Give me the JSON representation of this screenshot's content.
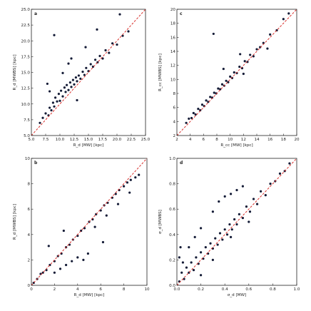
{
  "chart_data": [
    {
      "type": "scatter",
      "panel_letter": "a",
      "xlabel": "R_d [MW] [kpc]",
      "ylabel": "R_d [MWBS] [kpc]",
      "xlim": [
        5.0,
        25.0
      ],
      "ylim": [
        5.0,
        25.0
      ],
      "xticks": [
        "5.0",
        "7.5",
        "10.0",
        "12.5",
        "15.0",
        "17.5",
        "20.0",
        "22.5",
        "25.0"
      ],
      "yticks": [
        "5.0",
        "7.5",
        "10.0",
        "12.5",
        "15.0",
        "17.5",
        "20.0",
        "22.5",
        "25.0"
      ],
      "reference_line": "y = x",
      "series": [
        {
          "points": [
            [
              6.5,
              7.0
            ],
            [
              7.0,
              7.8
            ],
            [
              7.5,
              8.5
            ],
            [
              8.0,
              8.2
            ],
            [
              8.2,
              9.4
            ],
            [
              8.5,
              9.0
            ],
            [
              8.8,
              10.2
            ],
            [
              9.0,
              9.6
            ],
            [
              9.2,
              11.0
            ],
            [
              9.5,
              10.4
            ],
            [
              9.8,
              11.6
            ],
            [
              10.0,
              10.5
            ],
            [
              10.2,
              12.1
            ],
            [
              10.5,
              11.2
            ],
            [
              10.8,
              12.6
            ],
            [
              11.0,
              11.9
            ],
            [
              11.2,
              13.0
            ],
            [
              11.5,
              12.2
            ],
            [
              11.8,
              13.4
            ],
            [
              12.0,
              12.7
            ],
            [
              12.3,
              13.8
            ],
            [
              12.5,
              13.1
            ],
            [
              12.8,
              14.2
            ],
            [
              13.0,
              13.6
            ],
            [
              13.3,
              14.5
            ],
            [
              13.6,
              14.0
            ],
            [
              14.0,
              15.1
            ],
            [
              14.3,
              14.6
            ],
            [
              14.6,
              15.7
            ],
            [
              15.0,
              15.2
            ],
            [
              15.4,
              16.3
            ],
            [
              15.8,
              15.9
            ],
            [
              16.2,
              17.0
            ],
            [
              16.6,
              16.6
            ],
            [
              17.0,
              17.6
            ],
            [
              17.5,
              17.2
            ],
            [
              18.0,
              18.5
            ],
            [
              18.6,
              18.1
            ],
            [
              19.2,
              19.6
            ],
            [
              20.0,
              19.4
            ],
            [
              21.0,
              20.8
            ],
            [
              22.0,
              21.5
            ],
            [
              9.0,
              20.9
            ],
            [
              11.5,
              16.4
            ],
            [
              7.8,
              13.2
            ],
            [
              14.5,
              19.0
            ],
            [
              16.5,
              21.8
            ],
            [
              20.5,
              24.2
            ],
            [
              13.0,
              10.6
            ],
            [
              12.0,
              17.2
            ],
            [
              10.5,
              14.9
            ],
            [
              8.2,
              12.0
            ]
          ]
        }
      ]
    },
    {
      "type": "scatter",
      "panel_letter": "c",
      "xlabel": "R_cc [MW] [kpc]",
      "ylabel": "R_cc [MWBS] [kpc]",
      "xlim": [
        2,
        20
      ],
      "ylim": [
        2,
        20
      ],
      "xticks": [
        "2",
        "4",
        "6",
        "8",
        "10",
        "12",
        "14",
        "16",
        "18",
        "20"
      ],
      "yticks": [
        "2",
        "4",
        "6",
        "8",
        "10",
        "12",
        "14",
        "16",
        "18",
        "20"
      ],
      "reference_line": "y = x",
      "series": [
        {
          "points": [
            [
              3.4,
              3.8
            ],
            [
              3.8,
              4.4
            ],
            [
              4.2,
              4.5
            ],
            [
              4.5,
              5.2
            ],
            [
              4.8,
              5.0
            ],
            [
              5.2,
              5.8
            ],
            [
              5.5,
              5.6
            ],
            [
              5.8,
              6.4
            ],
            [
              6.1,
              6.2
            ],
            [
              6.4,
              7.0
            ],
            [
              6.7,
              6.8
            ],
            [
              7.0,
              7.5
            ],
            [
              7.3,
              7.4
            ],
            [
              7.6,
              8.1
            ],
            [
              7.9,
              8.0
            ],
            [
              8.2,
              8.7
            ],
            [
              8.5,
              8.6
            ],
            [
              8.8,
              9.3
            ],
            [
              9.1,
              9.1
            ],
            [
              9.4,
              9.8
            ],
            [
              9.7,
              9.6
            ],
            [
              10.0,
              10.4
            ],
            [
              10.3,
              10.2
            ],
            [
              10.6,
              11.0
            ],
            [
              11.0,
              10.9
            ],
            [
              11.4,
              11.8
            ],
            [
              11.8,
              11.6
            ],
            [
              12.2,
              12.6
            ],
            [
              12.6,
              12.5
            ],
            [
              13.0,
              13.5
            ],
            [
              13.5,
              13.3
            ],
            [
              14.0,
              14.3
            ],
            [
              14.5,
              14.6
            ],
            [
              15.0,
              15.2
            ],
            [
              16.0,
              16.4
            ],
            [
              17.0,
              17.0
            ],
            [
              18.0,
              18.6
            ],
            [
              18.8,
              19.4
            ],
            [
              7.5,
              16.5
            ],
            [
              11.5,
              13.6
            ],
            [
              15.6,
              14.4
            ],
            [
              9.0,
              11.5
            ],
            [
              12.0,
              10.8
            ]
          ]
        }
      ]
    },
    {
      "type": "scatter",
      "panel_letter": "b",
      "xlabel": "R_d [MW] [kpc]",
      "ylabel": "R_d [MWBS] [kpc]",
      "xlim": [
        0,
        10
      ],
      "ylim": [
        0,
        10
      ],
      "xticks": [
        "0",
        "2",
        "4",
        "6",
        "8",
        "10"
      ],
      "yticks": [
        "0",
        "2",
        "4",
        "6",
        "8",
        "10"
      ],
      "reference_line": "y = x",
      "series": [
        {
          "points": [
            [
              0.2,
              0.2
            ],
            [
              0.5,
              0.5
            ],
            [
              0.8,
              0.9
            ],
            [
              1.0,
              1.0
            ],
            [
              1.3,
              1.2
            ],
            [
              1.6,
              1.6
            ],
            [
              2.0,
              1.9
            ],
            [
              2.3,
              2.3
            ],
            [
              2.6,
              2.5
            ],
            [
              3.0,
              3.0
            ],
            [
              3.3,
              3.2
            ],
            [
              3.6,
              3.6
            ],
            [
              4.0,
              3.9
            ],
            [
              4.3,
              4.3
            ],
            [
              4.6,
              4.5
            ],
            [
              5.0,
              5.0
            ],
            [
              5.3,
              5.2
            ],
            [
              5.6,
              5.6
            ],
            [
              6.0,
              5.9
            ],
            [
              6.3,
              6.3
            ],
            [
              6.6,
              6.5
            ],
            [
              7.0,
              6.9
            ],
            [
              7.3,
              7.2
            ],
            [
              7.6,
              7.5
            ],
            [
              8.0,
              7.8
            ],
            [
              8.3,
              8.1
            ],
            [
              8.6,
              8.3
            ],
            [
              9.0,
              8.5
            ],
            [
              9.3,
              8.7
            ],
            [
              5.5,
              4.6
            ],
            [
              6.5,
              5.5
            ],
            [
              7.5,
              6.4
            ],
            [
              8.5,
              7.3
            ],
            [
              2.0,
              1.0
            ],
            [
              2.5,
              1.3
            ],
            [
              3.0,
              1.6
            ],
            [
              3.5,
              1.9
            ],
            [
              4.0,
              2.2
            ],
            [
              4.5,
              2.0
            ],
            [
              1.5,
              3.1
            ],
            [
              2.8,
              4.3
            ],
            [
              6.2,
              3.4
            ],
            [
              4.9,
              2.5
            ]
          ]
        }
      ]
    },
    {
      "type": "scatter",
      "panel_letter": "d",
      "xlabel": "σ_d [MW]",
      "ylabel": "σ_d [MWBS]",
      "xlim": [
        0.0,
        1.0
      ],
      "ylim": [
        0.0,
        1.0
      ],
      "xticks": [
        "0.0",
        "0.2",
        "0.4",
        "0.6",
        "0.8",
        "1.0"
      ],
      "yticks": [
        "0.0",
        "0.2",
        "0.4",
        "0.6",
        "0.8",
        "1.0"
      ],
      "reference_line": "y = x",
      "series": [
        {
          "points": [
            [
              0.02,
              0.03
            ],
            [
              0.04,
              0.1
            ],
            [
              0.06,
              0.05
            ],
            [
              0.08,
              0.14
            ],
            [
              0.1,
              0.1
            ],
            [
              0.12,
              0.18
            ],
            [
              0.14,
              0.12
            ],
            [
              0.16,
              0.22
            ],
            [
              0.18,
              0.17
            ],
            [
              0.2,
              0.26
            ],
            [
              0.22,
              0.21
            ],
            [
              0.24,
              0.3
            ],
            [
              0.26,
              0.25
            ],
            [
              0.28,
              0.33
            ],
            [
              0.3,
              0.29
            ],
            [
              0.32,
              0.37
            ],
            [
              0.34,
              0.32
            ],
            [
              0.36,
              0.41
            ],
            [
              0.38,
              0.36
            ],
            [
              0.4,
              0.44
            ],
            [
              0.42,
              0.4
            ],
            [
              0.44,
              0.48
            ],
            [
              0.46,
              0.44
            ],
            [
              0.48,
              0.52
            ],
            [
              0.5,
              0.48
            ],
            [
              0.52,
              0.56
            ],
            [
              0.55,
              0.53
            ],
            [
              0.58,
              0.62
            ],
            [
              0.61,
              0.58
            ],
            [
              0.64,
              0.68
            ],
            [
              0.67,
              0.64
            ],
            [
              0.7,
              0.74
            ],
            [
              0.74,
              0.71
            ],
            [
              0.78,
              0.8
            ],
            [
              0.82,
              0.82
            ],
            [
              0.86,
              0.88
            ],
            [
              0.9,
              0.9
            ],
            [
              0.94,
              0.96
            ],
            [
              0.02,
              0.22
            ],
            [
              0.03,
              0.3
            ],
            [
              0.05,
              0.18
            ],
            [
              0.1,
              0.3
            ],
            [
              0.15,
              0.38
            ],
            [
              0.2,
              0.45
            ],
            [
              0.3,
              0.58
            ],
            [
              0.35,
              0.66
            ],
            [
              0.4,
              0.7
            ],
            [
              0.45,
              0.72
            ],
            [
              0.5,
              0.75
            ],
            [
              0.55,
              0.78
            ],
            [
              0.3,
              0.2
            ],
            [
              0.45,
              0.38
            ],
            [
              0.6,
              0.5
            ],
            [
              0.2,
              0.08
            ]
          ]
        }
      ]
    }
  ],
  "colors": {
    "points": "#141b36",
    "reference_line": "#d9302c",
    "axes": "#222222"
  }
}
